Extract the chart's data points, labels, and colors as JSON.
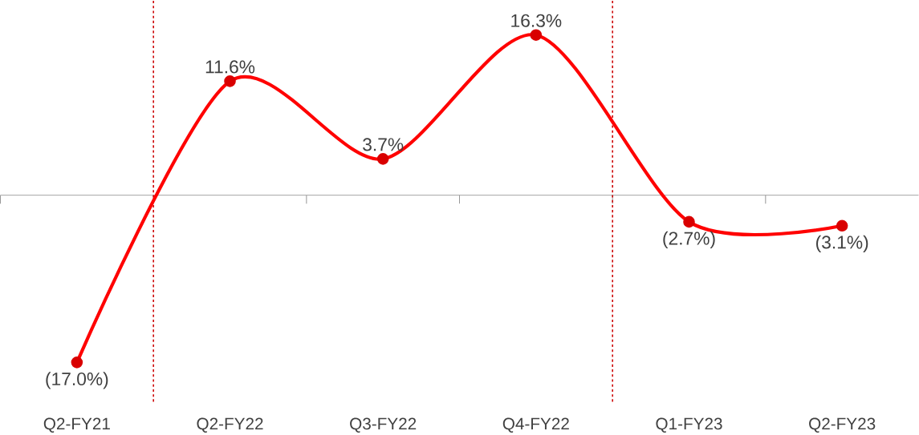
{
  "chart_data": {
    "type": "line",
    "categories": [
      "Q2-FY21",
      "Q2-FY22",
      "Q3-FY22",
      "Q4-FY22",
      "Q1-FY23",
      "Q2-FY23"
    ],
    "series": [
      {
        "color": "#ff0000",
        "values": [
          -17.0,
          11.6,
          3.7,
          16.3,
          -2.7,
          -3.1
        ],
        "value_labels": [
          "(17.0%)",
          "11.6%",
          "3.7%",
          "16.3%",
          "(2.7%)",
          "(3.1%)"
        ]
      }
    ],
    "marker": "circle",
    "line_style": "solid"
  }
}
